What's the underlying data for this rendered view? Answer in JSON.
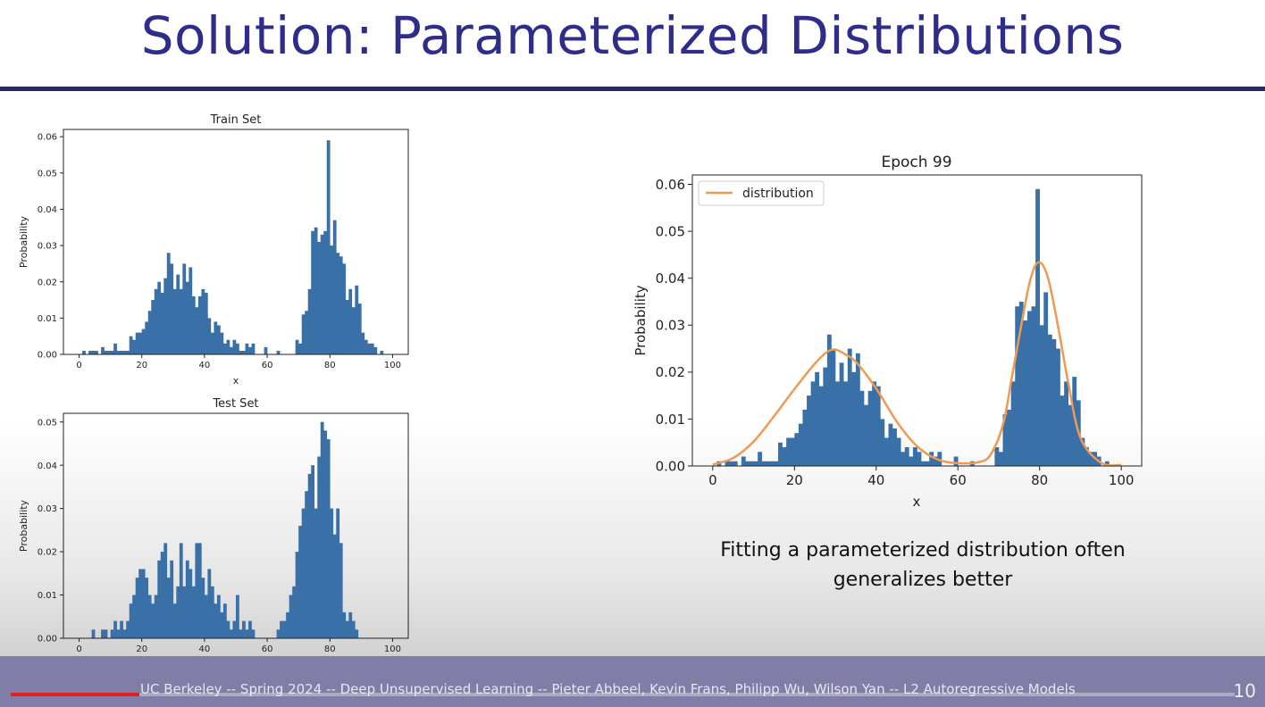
{
  "slide": {
    "title": "Solution: Parameterized Distributions",
    "caption": "Fitting a parameterized distribution often generalizes better",
    "footer": "UC Berkeley -- Spring 2024 -- Deep Unsupervised Learning -- Pieter Abbeel, Kevin Frans, Philipp Wu, Wilson Yan -- L2 Autoregressive Models",
    "page_number": "10",
    "video_progress": 0.105
  },
  "colors": {
    "title": "#2e2e8a",
    "bar": "#3a70a8",
    "curve": "#ee9a52",
    "footer": "#807ea6",
    "progress": "#e02020"
  },
  "chart_data": [
    {
      "id": "train",
      "type": "bar",
      "title": "Train Set",
      "xlabel": "x",
      "ylabel": "Probability",
      "xlim": [
        -5,
        105
      ],
      "ylim": [
        0,
        0.062
      ],
      "xticks": [
        "0",
        "20",
        "40",
        "60",
        "80",
        "100"
      ],
      "yticks": [
        "0.00",
        "0.01",
        "0.02",
        "0.03",
        "0.04",
        "0.05",
        "0.06"
      ],
      "x": [
        0,
        1,
        2,
        3,
        4,
        5,
        6,
        7,
        8,
        9,
        10,
        11,
        12,
        13,
        14,
        15,
        16,
        17,
        18,
        19,
        20,
        21,
        22,
        23,
        24,
        25,
        26,
        27,
        28,
        29,
        30,
        31,
        32,
        33,
        34,
        35,
        36,
        37,
        38,
        39,
        40,
        41,
        42,
        43,
        44,
        45,
        46,
        47,
        48,
        49,
        50,
        51,
        52,
        53,
        54,
        55,
        56,
        57,
        58,
        59,
        60,
        61,
        62,
        63,
        64,
        65,
        66,
        67,
        68,
        69,
        70,
        71,
        72,
        73,
        74,
        75,
        76,
        77,
        78,
        79,
        80,
        81,
        82,
        83,
        84,
        85,
        86,
        87,
        88,
        89,
        90,
        91,
        92,
        93,
        94,
        95,
        96,
        97,
        98,
        99
      ],
      "values": [
        0,
        0.001,
        0,
        0.001,
        0.001,
        0.001,
        0,
        0.002,
        0.001,
        0.001,
        0.001,
        0.003,
        0.001,
        0.001,
        0.001,
        0.001,
        0.005,
        0.004,
        0.006,
        0.006,
        0.007,
        0.009,
        0.012,
        0.015,
        0.018,
        0.02,
        0.017,
        0.021,
        0.028,
        0.025,
        0.018,
        0.022,
        0.018,
        0.025,
        0.02,
        0.024,
        0.016,
        0.013,
        0.016,
        0.018,
        0.017,
        0.01,
        0.006,
        0.009,
        0.008,
        0.006,
        0.003,
        0.004,
        0.002,
        0.004,
        0.003,
        0.001,
        0.001,
        0.003,
        0.002,
        0.003,
        0,
        0,
        0,
        0.002,
        0,
        0,
        0,
        0.001,
        0,
        0,
        0,
        0,
        0,
        0.004,
        0.003,
        0.011,
        0.012,
        0.018,
        0.034,
        0.035,
        0.031,
        0.033,
        0.034,
        0.059,
        0.03,
        0.037,
        0.028,
        0.027,
        0.025,
        0.015,
        0.018,
        0.013,
        0.019,
        0.014,
        0.006,
        0.004,
        0.003,
        0.003,
        0.002,
        0,
        0.001,
        0,
        0,
        0
      ]
    },
    {
      "id": "test",
      "type": "bar",
      "title": "Test Set",
      "xlabel": "x",
      "ylabel": "Probability",
      "xlim": [
        -5,
        105
      ],
      "ylim": [
        0,
        0.052
      ],
      "xticks": [
        "0",
        "20",
        "40",
        "60",
        "80",
        "100"
      ],
      "yticks": [
        "0.00",
        "0.01",
        "0.02",
        "0.03",
        "0.04",
        "0.05"
      ],
      "x": [
        0,
        1,
        2,
        3,
        4,
        5,
        6,
        7,
        8,
        9,
        10,
        11,
        12,
        13,
        14,
        15,
        16,
        17,
        18,
        19,
        20,
        21,
        22,
        23,
        24,
        25,
        26,
        27,
        28,
        29,
        30,
        31,
        32,
        33,
        34,
        35,
        36,
        37,
        38,
        39,
        40,
        41,
        42,
        43,
        44,
        45,
        46,
        47,
        48,
        49,
        50,
        51,
        52,
        53,
        54,
        55,
        56,
        57,
        58,
        59,
        60,
        61,
        62,
        63,
        64,
        65,
        66,
        67,
        68,
        69,
        70,
        71,
        72,
        73,
        74,
        75,
        76,
        77,
        78,
        79,
        80,
        81,
        82,
        83,
        84,
        85,
        86,
        87,
        88,
        89,
        90,
        91,
        92,
        93,
        94,
        95,
        96,
        97,
        98,
        99
      ],
      "values": [
        0,
        0,
        0,
        0,
        0.002,
        0,
        0,
        0.002,
        0.002,
        0,
        0.002,
        0.004,
        0.002,
        0.004,
        0.002,
        0.004,
        0.008,
        0.01,
        0.014,
        0.016,
        0.016,
        0.014,
        0.01,
        0.008,
        0.01,
        0.018,
        0.02,
        0.022,
        0.014,
        0.018,
        0.008,
        0.012,
        0.022,
        0.012,
        0.018,
        0.016,
        0.012,
        0.022,
        0.022,
        0.014,
        0.01,
        0.016,
        0.012,
        0.008,
        0.01,
        0.006,
        0.008,
        0.004,
        0.002,
        0.004,
        0.01,
        0.002,
        0.004,
        0.002,
        0.004,
        0.002,
        0,
        0,
        0,
        0,
        0,
        0,
        0,
        0.002,
        0.004,
        0.004,
        0.006,
        0.01,
        0.012,
        0.02,
        0.026,
        0.03,
        0.034,
        0.038,
        0.04,
        0.03,
        0.042,
        0.05,
        0.048,
        0.046,
        0.03,
        0.024,
        0.03,
        0.022,
        0.006,
        0.004,
        0.006,
        0.004,
        0.002,
        0,
        0,
        0,
        0,
        0,
        0,
        0,
        0,
        0,
        0,
        0
      ]
    },
    {
      "id": "fit",
      "type": "bar",
      "title": "Epoch 99",
      "xlabel": "x",
      "ylabel": "Probability",
      "xlim": [
        -5,
        105
      ],
      "ylim": [
        0,
        0.062
      ],
      "xticks": [
        "0",
        "20",
        "40",
        "60",
        "80",
        "100"
      ],
      "yticks": [
        "0.00",
        "0.01",
        "0.02",
        "0.03",
        "0.04",
        "0.05",
        "0.06"
      ],
      "legend": {
        "entries": [
          "distribution"
        ],
        "position": "top-left"
      },
      "x": [
        0,
        1,
        2,
        3,
        4,
        5,
        6,
        7,
        8,
        9,
        10,
        11,
        12,
        13,
        14,
        15,
        16,
        17,
        18,
        19,
        20,
        21,
        22,
        23,
        24,
        25,
        26,
        27,
        28,
        29,
        30,
        31,
        32,
        33,
        34,
        35,
        36,
        37,
        38,
        39,
        40,
        41,
        42,
        43,
        44,
        45,
        46,
        47,
        48,
        49,
        50,
        51,
        52,
        53,
        54,
        55,
        56,
        57,
        58,
        59,
        60,
        61,
        62,
        63,
        64,
        65,
        66,
        67,
        68,
        69,
        70,
        71,
        72,
        73,
        74,
        75,
        76,
        77,
        78,
        79,
        80,
        81,
        82,
        83,
        84,
        85,
        86,
        87,
        88,
        89,
        90,
        91,
        92,
        93,
        94,
        95,
        96,
        97,
        98,
        99
      ],
      "values": [
        0,
        0.001,
        0,
        0.001,
        0.001,
        0.001,
        0,
        0.002,
        0.001,
        0.001,
        0.001,
        0.003,
        0.001,
        0.001,
        0.001,
        0.001,
        0.005,
        0.004,
        0.006,
        0.006,
        0.007,
        0.009,
        0.012,
        0.015,
        0.018,
        0.02,
        0.017,
        0.021,
        0.028,
        0.025,
        0.018,
        0.022,
        0.018,
        0.025,
        0.02,
        0.024,
        0.016,
        0.013,
        0.016,
        0.018,
        0.017,
        0.01,
        0.006,
        0.009,
        0.008,
        0.006,
        0.003,
        0.004,
        0.002,
        0.004,
        0.003,
        0.001,
        0.001,
        0.003,
        0.002,
        0.003,
        0,
        0,
        0,
        0.002,
        0,
        0,
        0,
        0.001,
        0,
        0,
        0,
        0,
        0,
        0.004,
        0.003,
        0.011,
        0.012,
        0.018,
        0.034,
        0.035,
        0.031,
        0.033,
        0.034,
        0.059,
        0.03,
        0.037,
        0.028,
        0.027,
        0.025,
        0.015,
        0.018,
        0.013,
        0.019,
        0.014,
        0.006,
        0.004,
        0.003,
        0.003,
        0.002,
        0,
        0.001,
        0,
        0,
        0
      ],
      "series": [
        {
          "name": "distribution",
          "type": "line",
          "x": [
            0,
            5,
            10,
            15,
            20,
            25,
            28,
            30,
            32,
            35,
            40,
            45,
            50,
            55,
            60,
            65,
            68,
            71,
            73,
            75,
            77,
            78,
            79,
            80,
            81,
            82,
            83,
            85,
            87,
            90,
            95,
            100
          ],
          "y": [
            0.0003,
            0.0017,
            0.0052,
            0.0106,
            0.0164,
            0.0218,
            0.0243,
            0.0248,
            0.024,
            0.0222,
            0.0165,
            0.0095,
            0.0042,
            0.0014,
            0.0006,
            0.0008,
            0.0024,
            0.0087,
            0.0178,
            0.0275,
            0.0369,
            0.0405,
            0.0428,
            0.0434,
            0.0425,
            0.0402,
            0.0366,
            0.0275,
            0.0178,
            0.006,
            0.0007,
            0.0002
          ]
        }
      ]
    }
  ]
}
